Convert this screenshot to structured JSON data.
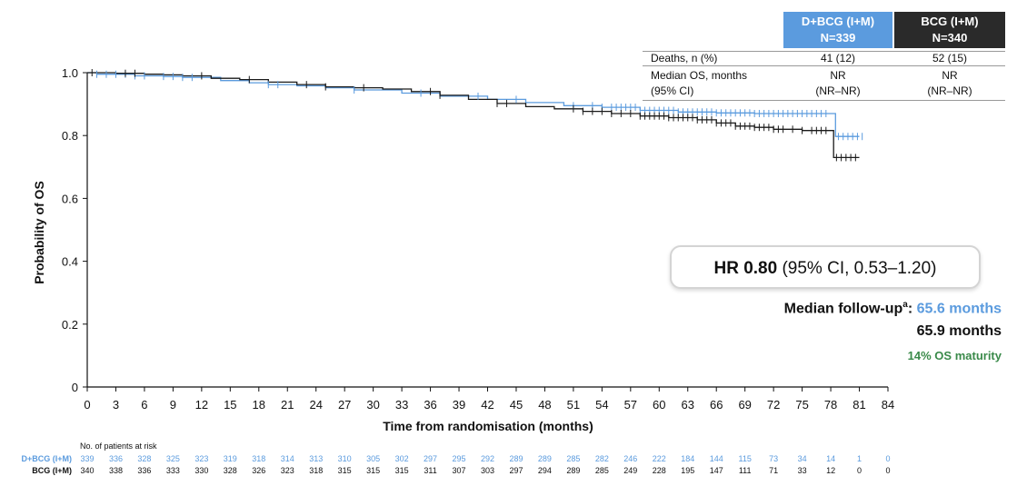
{
  "chart_data": {
    "type": "line",
    "title": "",
    "xlabel": "Time from randomisation (months)",
    "ylabel": "Probability of OS",
    "xlim": [
      0,
      84
    ],
    "ylim": [
      0,
      1.0
    ],
    "x_ticks": [
      0,
      3,
      6,
      9,
      12,
      15,
      18,
      21,
      24,
      27,
      30,
      33,
      36,
      39,
      42,
      45,
      48,
      51,
      54,
      57,
      60,
      63,
      66,
      69,
      72,
      75,
      78,
      81,
      84
    ],
    "y_ticks": [
      "0",
      "0.2",
      "0.4",
      "0.6",
      "0.8",
      "1.0"
    ],
    "y_tick_values": [
      0,
      0.2,
      0.4,
      0.6,
      0.8,
      1.0
    ],
    "grid": false,
    "series": [
      {
        "name": "D+BCG (I+M)",
        "color": "#5b9bde",
        "x": [
          0,
          1,
          3,
          5,
          8,
          10,
          14,
          17,
          19,
          22,
          25,
          28,
          33,
          37,
          42,
          46,
          50,
          54,
          58,
          62,
          66,
          70,
          74,
          78,
          78.5,
          81
        ],
        "y": [
          1.0,
          0.995,
          0.995,
          0.99,
          0.988,
          0.985,
          0.975,
          0.968,
          0.962,
          0.958,
          0.952,
          0.945,
          0.935,
          0.925,
          0.915,
          0.905,
          0.895,
          0.89,
          0.88,
          0.875,
          0.872,
          0.87,
          0.87,
          0.87,
          0.797,
          0.797
        ],
        "censor_x": [
          1,
          2,
          3,
          4,
          5,
          6,
          8,
          9,
          10,
          11,
          19,
          20,
          28,
          35,
          41,
          45,
          51,
          53,
          54,
          55,
          55.5,
          56,
          56.5,
          57,
          57.5,
          58,
          58.5,
          59,
          59.5,
          60,
          60.5,
          61,
          61.5,
          62,
          62.5,
          63,
          63.5,
          64,
          64.5,
          65,
          65.5,
          66,
          66.5,
          67,
          67.5,
          68,
          68.5,
          69,
          69.5,
          70,
          70.5,
          71,
          71.5,
          72,
          72.5,
          73,
          73.5,
          74,
          74.5,
          75,
          75.5,
          76,
          76.5,
          77,
          77.5,
          78.8,
          79.3,
          79.8,
          80.3,
          80.8,
          81.3
        ]
      },
      {
        "name": "BCG (I+M)",
        "color": "#1a1a1a",
        "x": [
          0,
          3,
          6,
          8,
          10,
          13,
          16,
          19,
          22,
          25,
          28,
          31,
          34,
          37,
          40,
          43,
          46,
          49,
          52,
          55,
          58,
          61,
          64,
          66,
          68,
          70,
          72,
          75,
          78,
          78.3,
          81
        ],
        "y": [
          1.0,
          0.998,
          0.995,
          0.993,
          0.99,
          0.982,
          0.978,
          0.97,
          0.962,
          0.955,
          0.952,
          0.948,
          0.94,
          0.928,
          0.915,
          0.902,
          0.892,
          0.885,
          0.877,
          0.87,
          0.862,
          0.857,
          0.85,
          0.84,
          0.83,
          0.826,
          0.82,
          0.816,
          0.816,
          0.73,
          0.73
        ],
        "censor_x": [
          0.5,
          4,
          5,
          12,
          17,
          23,
          25,
          29,
          36,
          37,
          43,
          44,
          51,
          52,
          53,
          54,
          55,
          56,
          57,
          58,
          58.5,
          59,
          59.5,
          60,
          60.5,
          61,
          61.5,
          62,
          62.5,
          63,
          63.5,
          64,
          64.5,
          65,
          65.5,
          66,
          66.5,
          67,
          67.5,
          68,
          68.5,
          69,
          69.5,
          70,
          70.5,
          71,
          71.5,
          72,
          72.5,
          73,
          74,
          75,
          76,
          76.5,
          77,
          77.5,
          78.6,
          79.1,
          79.6,
          80.1,
          80.6
        ]
      }
    ]
  },
  "table": {
    "header": [
      {
        "label_line1": "D+BCG (I+M)",
        "label_line2": "N=339",
        "color": "#5b9bde"
      },
      {
        "label_line1": "BCG (I+M)",
        "label_line2": "N=340",
        "color": "#2a2a2a"
      }
    ],
    "rows": [
      {
        "label": "Deaths, n (%)",
        "v1": "41 (12)",
        "v2": "52 (15)"
      },
      {
        "label": "Median OS, months",
        "v1": "NR",
        "v2": "NR"
      },
      {
        "label": "(95% CI)",
        "v1": "(NR–NR)",
        "v2": "(NR–NR)"
      }
    ]
  },
  "hr_box": {
    "bold": "HR 0.80",
    "rest": " (95% CI, 0.53–1.20)"
  },
  "followup": {
    "label": "Median follow-up",
    "sup": "a",
    "colon": ": ",
    "value1": "65.6 months",
    "value2": "65.9 months",
    "maturity": "14% OS maturity",
    "color1": "#5b9bde",
    "color2": "#111111",
    "color3": "#3a8a4a"
  },
  "risk_table": {
    "title": "No. of patients at risk",
    "rows": [
      {
        "label": "D+BCG (I+M)",
        "color": "#5b9bde",
        "values": [
          "339",
          "336",
          "328",
          "325",
          "323",
          "319",
          "318",
          "314",
          "313",
          "310",
          "305",
          "302",
          "297",
          "295",
          "292",
          "289",
          "289",
          "285",
          "282",
          "246",
          "222",
          "184",
          "144",
          "115",
          "73",
          "34",
          "14",
          "1",
          "0"
        ]
      },
      {
        "label": "BCG (I+M)",
        "color": "#111111",
        "values": [
          "340",
          "338",
          "336",
          "333",
          "330",
          "328",
          "326",
          "323",
          "318",
          "315",
          "315",
          "315",
          "311",
          "307",
          "303",
          "297",
          "294",
          "289",
          "285",
          "249",
          "228",
          "195",
          "147",
          "111",
          "71",
          "33",
          "12",
          "0",
          "0"
        ]
      }
    ]
  }
}
